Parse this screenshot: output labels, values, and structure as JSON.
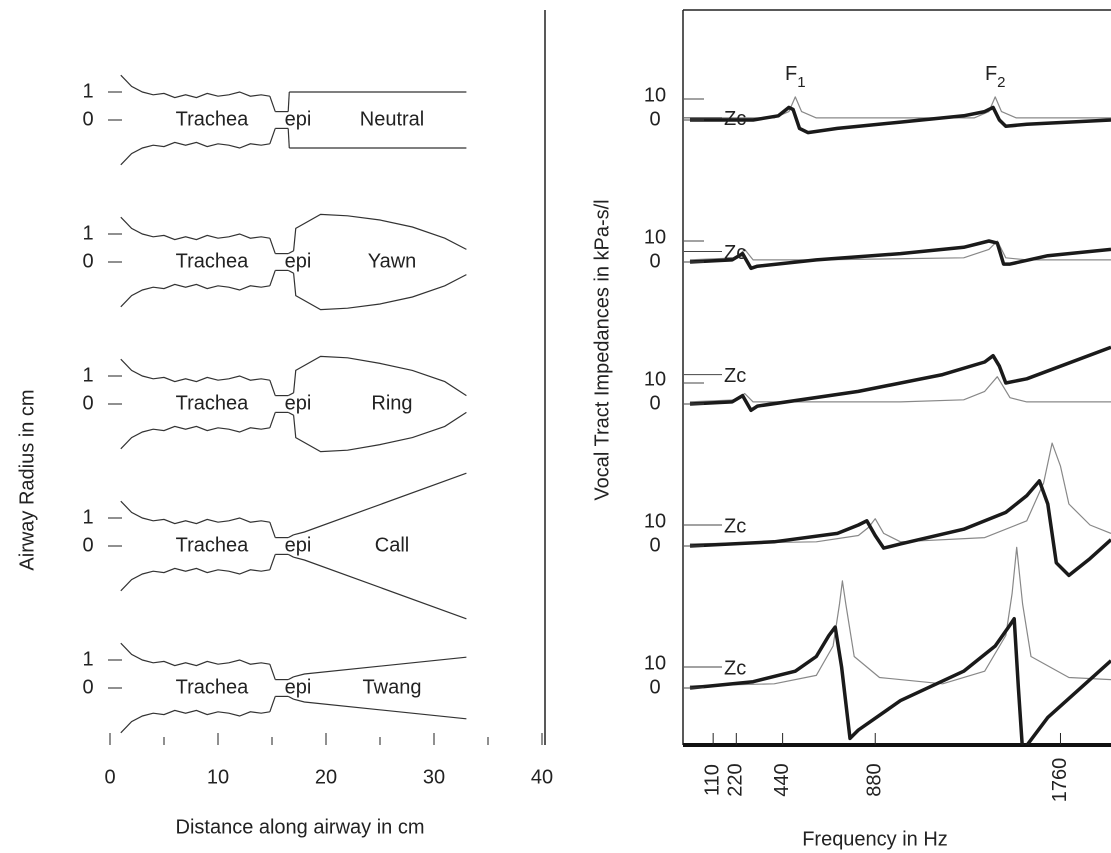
{
  "chart_data": [
    {
      "type": "profile",
      "ylabel": "Airway Radius in cm",
      "xlabel": "Distance along airway in cm",
      "xlim": [
        0,
        40
      ],
      "xticks": [
        0,
        10,
        20,
        30,
        40
      ],
      "xminorticks": [
        5,
        15,
        25,
        35
      ],
      "yticks": [
        0,
        1
      ],
      "segment_labels": [
        "Trachea",
        "epi"
      ],
      "color": "#333333",
      "trachea": {
        "x": [
          1,
          2,
          3,
          4,
          5,
          6,
          7,
          8,
          9,
          10,
          11,
          12,
          13,
          14,
          14.8
        ],
        "r": [
          1.6,
          1.2,
          1.0,
          0.9,
          0.95,
          0.8,
          0.9,
          0.8,
          0.95,
          0.85,
          0.9,
          1.0,
          0.85,
          0.9,
          0.85
        ]
      },
      "epi": {
        "x": [
          15.3,
          16.5
        ],
        "r": [
          0.3,
          0.3
        ]
      },
      "rows": [
        {
          "name": "Neutral",
          "x": [
            16.6,
            33
          ],
          "r": [
            1,
            1
          ]
        },
        {
          "name": "Yawn",
          "x": [
            17,
            17.2,
            19.5,
            22,
            25,
            28,
            31,
            33
          ],
          "r": [
            0.4,
            1.2,
            1.7,
            1.65,
            1.5,
            1.25,
            0.85,
            0.45
          ]
        },
        {
          "name": "Ring",
          "x": [
            17,
            17.2,
            19.5,
            22,
            25,
            28,
            31,
            33
          ],
          "r": [
            0.4,
            1.2,
            1.7,
            1.65,
            1.45,
            1.2,
            0.8,
            0.3
          ]
        },
        {
          "name": "Call",
          "x": [
            17,
            18,
            33
          ],
          "r": [
            0.4,
            0.5,
            2.6
          ]
        },
        {
          "name": "Twang",
          "x": [
            17,
            18,
            33
          ],
          "r": [
            0.4,
            0.5,
            1.1
          ]
        }
      ]
    },
    {
      "type": "impedance",
      "ylabel": "Vocal Tract Impedances in kPa-s/l",
      "xlabel": "Frequency in Hz",
      "xlim": [
        0,
        2000
      ],
      "xticks": [
        110,
        220,
        440,
        880,
        1760
      ],
      "yticks": [
        0,
        10
      ],
      "annotation": "Zc",
      "formants": [
        {
          "base": "F",
          "sub": "1",
          "x": 500
        },
        {
          "base": "F",
          "sub": "2",
          "x": 1450
        }
      ],
      "rows": [
        {
          "zc": 1,
          "series": [
            {
              "color": "#888888",
              "x": [
                0,
                400,
                470,
                500,
                530,
                600,
                1350,
                1420,
                1450,
                1480,
                1550,
                2000
              ],
              "values": [
                1,
                1,
                4,
                11,
                4,
                1,
                1,
                4,
                11,
                4,
                1,
                1
              ]
            },
            {
              "color": "#1a1a1a",
              "x": [
                0,
                300,
                420,
                470,
                490,
                520,
                560,
                700,
                1000,
                1300,
                1400,
                1440,
                1470,
                1500,
                1600,
                2000
              ],
              "values": [
                0,
                0,
                2,
                6,
                5,
                -4,
                -6,
                -4,
                -1,
                2,
                4,
                6,
                0,
                -3,
                -2,
                0
              ]
            }
          ]
        },
        {
          "zc": 5,
          "series": [
            {
              "color": "#888888",
              "x": [
                0,
                220,
                260,
                300,
                600,
                1300,
                1420,
                1460,
                1500,
                1600,
                2000
              ],
              "values": [
                1,
                2,
                6,
                1,
                1,
                2,
                6,
                10,
                2,
                1,
                1
              ]
            },
            {
              "color": "#1a1a1a",
              "x": [
                0,
                200,
                250,
                290,
                320,
                600,
                1000,
                1300,
                1420,
                1460,
                1490,
                1520,
                1700,
                2000
              ],
              "values": [
                0,
                1,
                4,
                -3,
                -2,
                1,
                4,
                7,
                10,
                9,
                -1,
                -1,
                3,
                6
              ]
            }
          ]
        },
        {
          "zc": 14,
          "series": [
            {
              "color": "#888888",
              "x": [
                0,
                220,
                260,
                300,
                1000,
                1300,
                1400,
                1460,
                1520,
                1600,
                2000
              ],
              "values": [
                1,
                2,
                5,
                1,
                1,
                2,
                6,
                13,
                3,
                1,
                1
              ]
            },
            {
              "color": "#1a1a1a",
              "x": [
                0,
                200,
                250,
                290,
                320,
                800,
                1200,
                1400,
                1440,
                1470,
                1500,
                1600,
                2000
              ],
              "values": [
                0,
                1,
                4,
                -3,
                -1,
                6,
                14,
                20,
                23,
                18,
                10,
                12,
                27
              ]
            }
          ]
        },
        {
          "zc": 10,
          "series": [
            {
              "color": "#888888",
              "x": [
                0,
                600,
                800,
                850,
                880,
                920,
                1000,
                1400,
                1600,
                1680,
                1720,
                1760,
                1800,
                1900,
                2000
              ],
              "values": [
                1,
                2,
                5,
                9,
                13,
                6,
                2,
                4,
                12,
                30,
                49,
                38,
                20,
                10,
                6
              ]
            },
            {
              "color": "#1a1a1a",
              "x": [
                0,
                400,
                700,
                800,
                840,
                880,
                920,
                1000,
                1300,
                1500,
                1600,
                1660,
                1700,
                1740,
                1800,
                1900,
                2000
              ],
              "values": [
                0,
                2,
                6,
                10,
                12,
                5,
                -1,
                1,
                8,
                16,
                24,
                31,
                20,
                -8,
                -14,
                -6,
                3
              ]
            }
          ]
        },
        {
          "zc": 10,
          "series": [
            {
              "color": "#888888",
              "x": [
                0,
                400,
                600,
                680,
                710,
                724,
                740,
                780,
                900,
                1200,
                1400,
                1500,
                1530,
                1552,
                1580,
                1620,
                1800,
                2000
              ],
              "values": [
                1,
                2,
                6,
                20,
                40,
                51,
                40,
                15,
                5,
                2,
                8,
                25,
                45,
                67,
                40,
                15,
                5,
                4
              ]
            },
            {
              "color": "#1a1a1a",
              "x": [
                0,
                300,
                500,
                600,
                660,
                690,
                720,
                760,
                800,
                1000,
                1300,
                1450,
                1520,
                1540,
                1560,
                1580,
                1700,
                1900,
                2000
              ],
              "values": [
                0,
                3,
                8,
                15,
                25,
                29,
                10,
                -24,
                -20,
                -6,
                8,
                20,
                30,
                33,
                0,
                -30,
                -14,
                4,
                13
              ]
            }
          ]
        }
      ]
    }
  ]
}
